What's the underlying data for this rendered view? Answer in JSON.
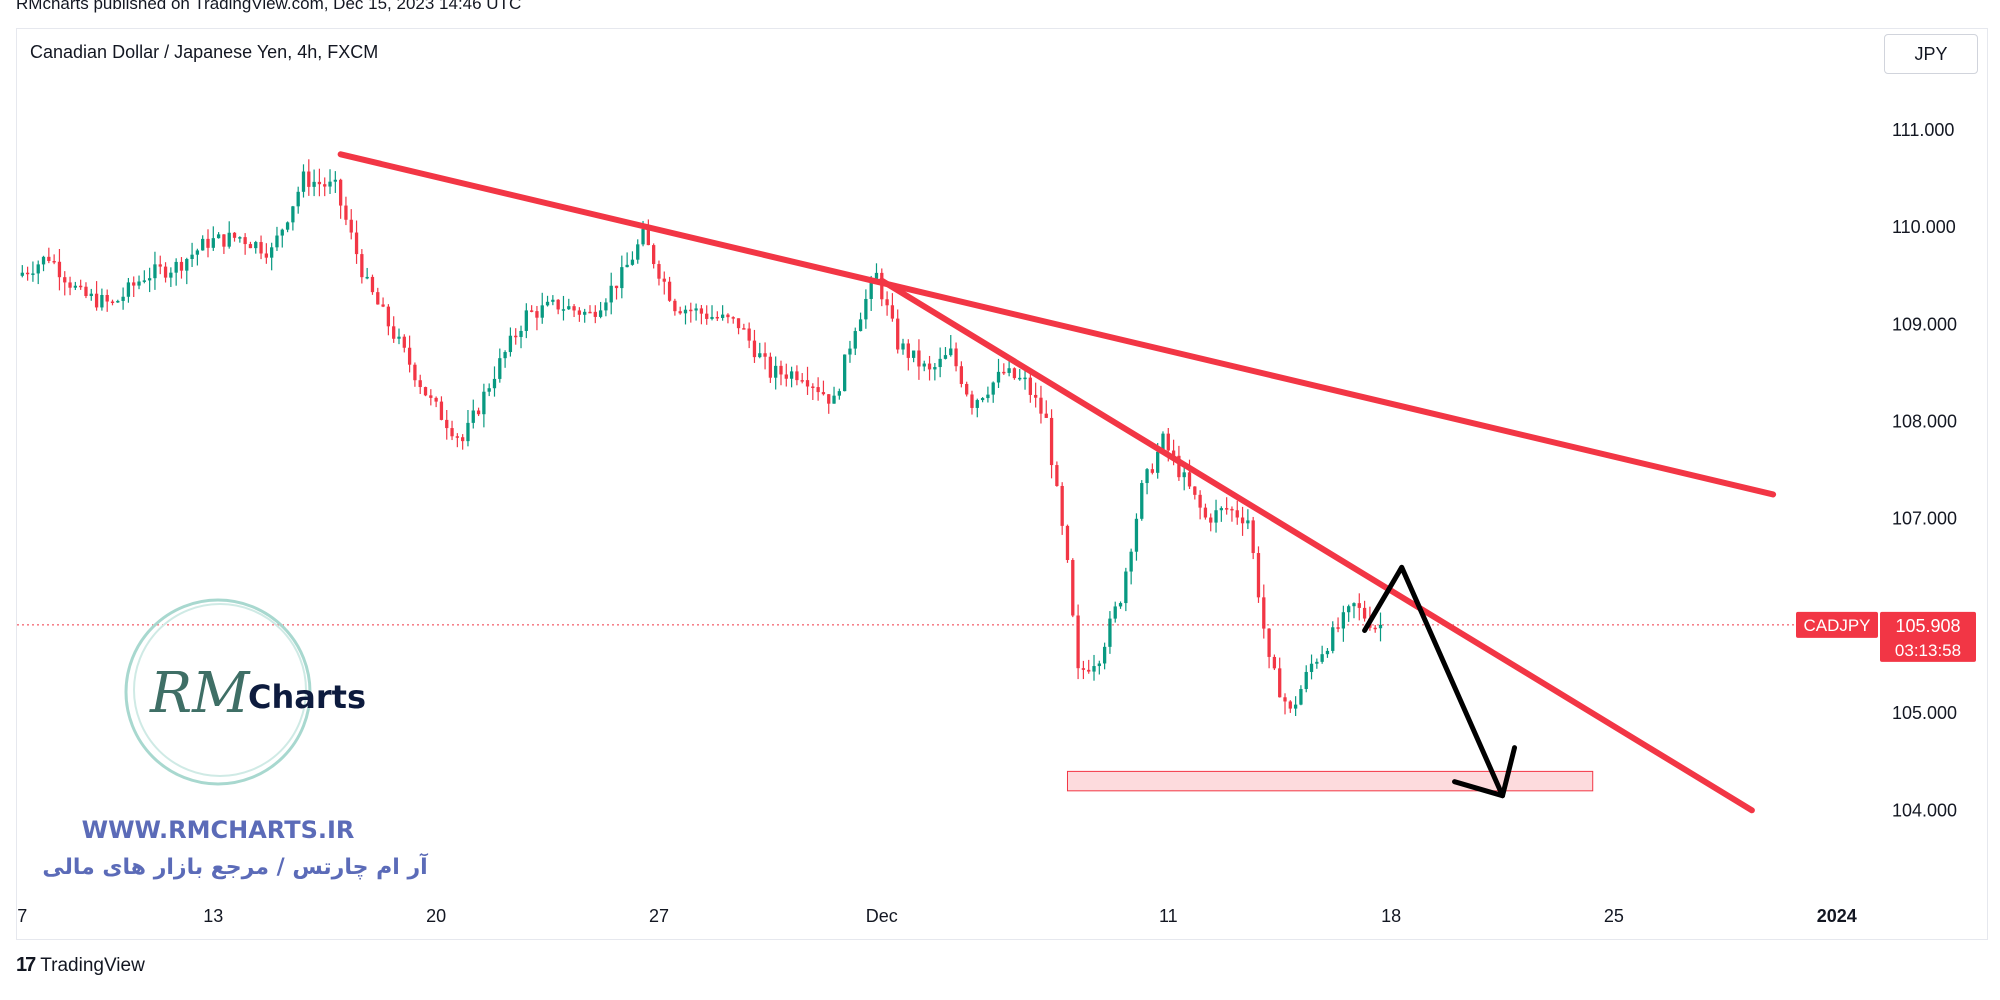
{
  "header": {
    "published": "RMcharts published on TradingView.com, Dec 15, 2023 14:46 UTC"
  },
  "toolbar": {
    "symbol_title": "Canadian Dollar / Japanese Yen, 4h, FXCM",
    "currency": "JPY"
  },
  "chart_data": {
    "type": "candlestick",
    "symbol": "CADJPY",
    "ylim": [
      103.2,
      111.7
    ],
    "y_ticks": [
      {
        "label": "111.000",
        "value": 111.0
      },
      {
        "label": "110.000",
        "value": 110.0
      },
      {
        "label": "109.000",
        "value": 109.0
      },
      {
        "label": "108.000",
        "value": 108.0
      },
      {
        "label": "107.000",
        "value": 107.0
      },
      {
        "label": "105.000",
        "value": 105.0
      },
      {
        "label": "104.000",
        "value": 104.0
      }
    ],
    "x_ticks": [
      {
        "label": "7",
        "bar": 0
      },
      {
        "label": "13",
        "bar": 36
      },
      {
        "label": "20",
        "bar": 78
      },
      {
        "label": "27",
        "bar": 120
      },
      {
        "label": "Dec",
        "bar": 162
      },
      {
        "label": "11",
        "bar": 216
      },
      {
        "label": "18",
        "bar": 258
      },
      {
        "label": "25",
        "bar": 300
      },
      {
        "label": "2024",
        "bar": 342
      }
    ],
    "last_price": {
      "label": "CADJPY",
      "value": 105.908,
      "value_label": "105.908",
      "countdown": "03:13:58"
    },
    "anchors": [
      [
        0,
        109.5
      ],
      [
        6,
        109.7
      ],
      [
        12,
        109.3
      ],
      [
        18,
        109.2
      ],
      [
        24,
        109.5
      ],
      [
        30,
        109.6
      ],
      [
        36,
        109.85
      ],
      [
        42,
        109.9
      ],
      [
        48,
        109.75
      ],
      [
        54,
        110.5
      ],
      [
        60,
        110.4
      ],
      [
        66,
        109.4
      ],
      [
        72,
        108.8
      ],
      [
        78,
        108.2
      ],
      [
        84,
        107.8
      ],
      [
        90,
        108.5
      ],
      [
        96,
        109.1
      ],
      [
        102,
        109.2
      ],
      [
        108,
        109.1
      ],
      [
        114,
        109.5
      ],
      [
        118,
        109.9
      ],
      [
        124,
        109.2
      ],
      [
        130,
        109.1
      ],
      [
        136,
        109.0
      ],
      [
        142,
        108.5
      ],
      [
        148,
        108.5
      ],
      [
        154,
        108.2
      ],
      [
        158,
        109.0
      ],
      [
        162,
        109.5
      ],
      [
        166,
        108.8
      ],
      [
        172,
        108.5
      ],
      [
        176,
        108.7
      ],
      [
        180,
        108.2
      ],
      [
        186,
        108.5
      ],
      [
        190,
        108.4
      ],
      [
        194,
        108.0
      ],
      [
        198,
        106.5
      ],
      [
        200,
        105.4
      ],
      [
        204,
        105.6
      ],
      [
        208,
        106.2
      ],
      [
        212,
        107.3
      ],
      [
        216,
        107.8
      ],
      [
        220,
        107.4
      ],
      [
        224,
        107.0
      ],
      [
        228,
        107.1
      ],
      [
        232,
        107.0
      ],
      [
        236,
        105.5
      ],
      [
        240,
        105.0
      ],
      [
        244,
        105.5
      ],
      [
        248,
        105.8
      ],
      [
        252,
        106.1
      ],
      [
        256,
        105.9
      ]
    ],
    "bar_count": 257,
    "x_domain": [
      -1,
      346
    ],
    "trendlines": [
      {
        "name": "upper-trendline",
        "from": [
          60,
          110.75
        ],
        "to": [
          330,
          107.25
        ],
        "color": "#f23645"
      },
      {
        "name": "lower-trendline",
        "from": [
          162,
          109.45
        ],
        "to": [
          326,
          104.0
        ],
        "color": "#f23645"
      }
    ],
    "projection": {
      "points": [
        [
          253,
          105.85
        ],
        [
          260,
          106.5
        ],
        [
          279,
          104.15
        ]
      ],
      "color": "#000000"
    },
    "support_zone": {
      "x1": 197,
      "x2": 296,
      "y1": 104.4,
      "y2": 104.2
    },
    "colors": {
      "up": "#089981",
      "down": "#f23645"
    }
  },
  "watermark": {
    "logo_letters": "RM",
    "logo_word": "Charts",
    "url": "WWW.RMCHARTS.IR",
    "tagline": "آر ام چارتس / مرجع بازار های مالی"
  },
  "footer": {
    "logo_mark": "17",
    "brand": "TradingView"
  }
}
